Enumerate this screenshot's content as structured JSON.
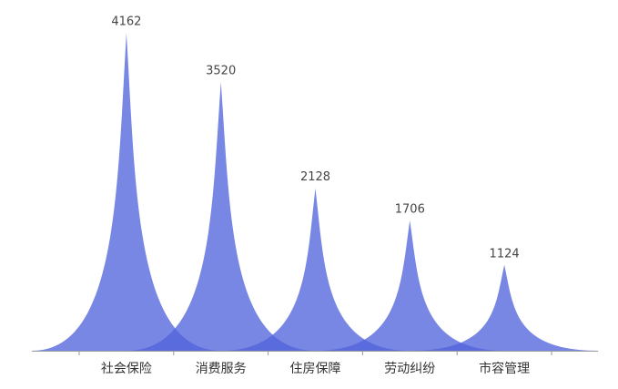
{
  "chart_data": {
    "type": "pictorial-spike",
    "categories": [
      "社会保险",
      "消费服务",
      "住房保障",
      "劳动纠纷",
      "市容管理"
    ],
    "values": [
      4162,
      3520,
      2128,
      1706,
      1124
    ],
    "color": "#5264dd",
    "ylim": [
      0,
      4200
    ]
  }
}
